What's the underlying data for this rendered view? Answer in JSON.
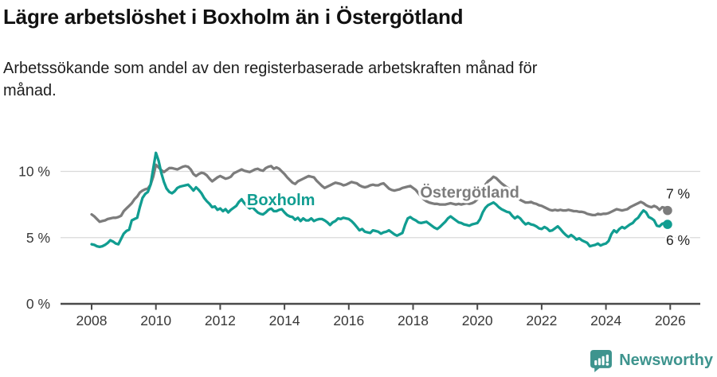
{
  "header": {
    "title": "Lägre arbetslöshet i Boxholm än i Östergötland",
    "subtitle_lines": [
      "Arbetssökande som andel av den registerbaserade arbetskraften månad för",
      "månad."
    ]
  },
  "footer": {
    "brand": "Newsworthy",
    "brand_color": "#3e948e",
    "logo_icon": "bar-chart-speech-bubble"
  },
  "chart_data": {
    "type": "line",
    "title": "Lägre arbetslöshet i Boxholm än i Östergötland",
    "xlabel": "",
    "ylabel": "",
    "x_axis": {
      "ticks": [
        2008,
        2010,
        2012,
        2014,
        2016,
        2018,
        2020,
        2022,
        2024,
        2026
      ],
      "range": [
        2007.0,
        2026.9
      ]
    },
    "y_axis": {
      "ticks": [
        {
          "value": 0,
          "label": "0 %"
        },
        {
          "value": 5,
          "label": "5 %"
        },
        {
          "value": 10,
          "label": "10 %"
        }
      ],
      "range": [
        0,
        12
      ]
    },
    "grid": "horizontal",
    "legend_position": "inline-labels",
    "style": {
      "grid_color": "#d9d9d9",
      "axis_color": "#4a4a4a",
      "tick_label_color": "#383838",
      "value_label_color": "#1f1f1f",
      "background": "#ffffff"
    },
    "series": [
      {
        "id": "ostergotland",
        "name": "Östergötland",
        "color": "#7c7c7c",
        "start": 2008.0,
        "interval_months": 1,
        "end_label": "7 %",
        "end_label_position": "above",
        "annotation": {
          "x": 2018.22,
          "y": 8.02
        },
        "values": [
          6.75,
          6.6,
          6.4,
          6.2,
          6.25,
          6.3,
          6.4,
          6.45,
          6.5,
          6.5,
          6.55,
          6.65,
          7.0,
          7.2,
          7.4,
          7.6,
          7.9,
          8.1,
          8.4,
          8.55,
          8.65,
          8.7,
          9.0,
          9.6,
          10.5,
          10.3,
          10.1,
          9.95,
          10.1,
          10.25,
          10.25,
          10.2,
          10.15,
          10.25,
          10.35,
          10.4,
          10.35,
          10.15,
          9.8,
          9.65,
          9.8,
          9.9,
          9.85,
          9.7,
          9.45,
          9.25,
          9.4,
          9.55,
          9.65,
          9.55,
          9.45,
          9.5,
          9.6,
          9.85,
          9.95,
          10.05,
          10.15,
          10.05,
          10.0,
          9.95,
          10.05,
          10.15,
          10.2,
          10.1,
          10.05,
          10.25,
          10.35,
          10.4,
          10.2,
          10.3,
          10.2,
          10.0,
          9.8,
          9.55,
          9.35,
          9.15,
          9.05,
          9.25,
          9.35,
          9.45,
          9.55,
          9.65,
          9.6,
          9.55,
          9.3,
          9.1,
          8.9,
          8.75,
          8.85,
          8.95,
          9.05,
          9.15,
          9.1,
          9.05,
          8.95,
          9.0,
          9.1,
          9.2,
          9.15,
          9.1,
          8.95,
          8.85,
          8.8,
          8.85,
          8.95,
          9.0,
          8.95,
          8.95,
          9.05,
          9.1,
          8.9,
          8.7,
          8.6,
          8.55,
          8.6,
          8.65,
          8.75,
          8.8,
          8.85,
          8.9,
          8.75,
          8.6,
          8.35,
          8.1,
          7.9,
          7.75,
          7.65,
          7.6,
          7.55,
          7.55,
          7.5,
          7.5,
          7.5,
          7.55,
          7.6,
          7.55,
          7.5,
          7.55,
          7.5,
          7.55,
          7.6,
          7.55,
          7.6,
          7.7,
          7.9,
          8.2,
          8.6,
          9.0,
          9.25,
          9.4,
          9.6,
          9.5,
          9.3,
          9.1,
          8.95,
          8.8,
          8.65,
          8.45,
          8.25,
          8.0,
          7.85,
          7.75,
          7.65,
          7.65,
          7.7,
          7.6,
          7.55,
          7.45,
          7.4,
          7.3,
          7.2,
          7.1,
          7.05,
          7.1,
          7.05,
          7.1,
          7.05,
          7.05,
          7.1,
          7.05,
          7.0,
          7.0,
          6.95,
          6.95,
          6.9,
          6.8,
          6.75,
          6.7,
          6.7,
          6.8,
          6.75,
          6.8,
          6.8,
          6.85,
          6.95,
          7.05,
          7.15,
          7.1,
          7.05,
          7.1,
          7.15,
          7.3,
          7.4,
          7.5,
          7.6,
          7.7,
          7.6,
          7.45,
          7.35,
          7.3,
          7.4,
          7.3,
          7.1,
          7.3,
          7.25,
          7.05
        ]
      },
      {
        "id": "boxholm",
        "name": "Boxholm",
        "color": "#119d91",
        "start": 2008.0,
        "interval_months": 1,
        "end_label": "6 %",
        "end_label_position": "below",
        "annotation": {
          "x": 2012.83,
          "y": 7.45
        },
        "values": [
          4.5,
          4.45,
          4.35,
          4.3,
          4.35,
          4.45,
          4.6,
          4.8,
          4.7,
          4.55,
          4.5,
          4.9,
          5.3,
          5.5,
          5.6,
          6.3,
          6.4,
          6.5,
          7.3,
          8.0,
          8.3,
          8.45,
          9.0,
          10.2,
          11.4,
          10.8,
          9.9,
          9.2,
          8.7,
          8.45,
          8.35,
          8.5,
          8.75,
          8.85,
          8.9,
          8.95,
          9.0,
          8.8,
          8.55,
          8.8,
          8.6,
          8.35,
          8.0,
          7.75,
          7.55,
          7.3,
          7.35,
          7.1,
          7.2,
          7.0,
          7.15,
          6.9,
          7.1,
          7.25,
          7.4,
          7.7,
          7.9,
          7.6,
          7.4,
          7.2,
          7.3,
          7.1,
          6.9,
          6.8,
          6.75,
          6.9,
          7.1,
          7.2,
          7.0,
          7.0,
          7.1,
          7.15,
          6.9,
          6.7,
          6.6,
          6.55,
          6.35,
          6.5,
          6.25,
          6.45,
          6.3,
          6.3,
          6.45,
          6.25,
          6.35,
          6.4,
          6.4,
          6.3,
          6.15,
          5.95,
          6.15,
          6.25,
          6.45,
          6.4,
          6.5,
          6.45,
          6.4,
          6.25,
          6.05,
          5.8,
          5.55,
          5.65,
          5.45,
          5.4,
          5.35,
          5.55,
          5.5,
          5.45,
          5.3,
          5.4,
          5.45,
          5.55,
          5.4,
          5.25,
          5.15,
          5.25,
          5.35,
          5.95,
          6.45,
          6.55,
          6.4,
          6.3,
          6.15,
          6.1,
          6.15,
          6.2,
          6.05,
          5.9,
          5.75,
          5.65,
          5.8,
          6.0,
          6.2,
          6.45,
          6.6,
          6.45,
          6.3,
          6.15,
          6.1,
          6.0,
          5.95,
          5.9,
          6.0,
          6.05,
          6.1,
          6.4,
          6.9,
          7.25,
          7.45,
          7.55,
          7.65,
          7.5,
          7.3,
          7.15,
          7.05,
          6.95,
          6.9,
          6.65,
          6.45,
          6.6,
          6.45,
          6.2,
          6.0,
          6.1,
          6.0,
          5.95,
          5.85,
          5.7,
          5.65,
          5.8,
          5.7,
          5.5,
          5.55,
          5.7,
          5.85,
          5.65,
          5.4,
          5.2,
          5.05,
          5.2,
          5.05,
          4.85,
          4.95,
          4.8,
          4.7,
          4.6,
          4.35,
          4.4,
          4.45,
          4.55,
          4.4,
          4.5,
          4.55,
          4.75,
          5.25,
          5.55,
          5.4,
          5.65,
          5.8,
          5.7,
          5.85,
          6.0,
          6.1,
          6.35,
          6.5,
          6.8,
          7.05,
          6.9,
          6.55,
          6.45,
          6.3,
          5.9,
          5.85,
          6.05,
          6.1,
          6.0
        ]
      }
    ]
  }
}
